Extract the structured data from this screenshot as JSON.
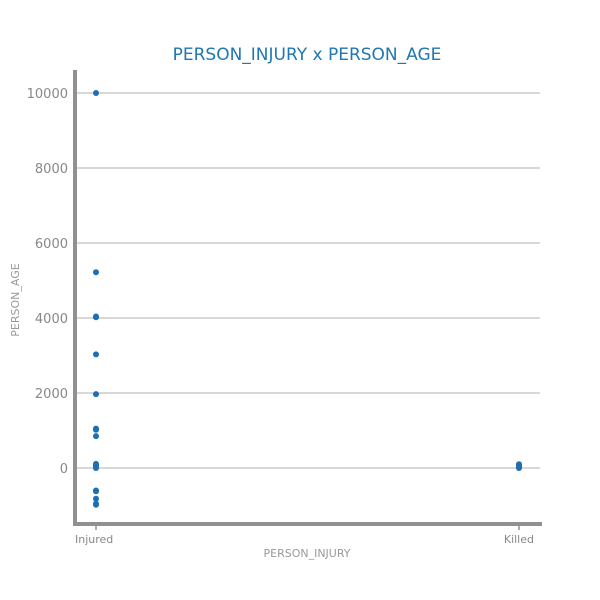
{
  "colors": {
    "accent": "#1f77b4",
    "point": "#1f6fb0",
    "axis": "#909090",
    "grid": "#cccccc",
    "text": "#888888"
  },
  "chart_data": {
    "type": "scatter",
    "title": "PERSON_INJURY x PERSON_AGE",
    "xlabel": "PERSON_INJURY",
    "ylabel": "PERSON_AGE",
    "categories": [
      "Injured",
      "Killed"
    ],
    "ylim": [
      -1500,
      10600
    ],
    "yticks": [
      0,
      2000,
      4000,
      6000,
      8000,
      10000
    ],
    "ytick_labels": [
      "0",
      "2000",
      "4000",
      "6000",
      "8000",
      "10000"
    ],
    "grid": true,
    "points": [
      {
        "x": "Injured",
        "y": 10000
      },
      {
        "x": "Injured",
        "y": 5220
      },
      {
        "x": "Injured",
        "y": 4040
      },
      {
        "x": "Injured",
        "y": 4020
      },
      {
        "x": "Injured",
        "y": 3030
      },
      {
        "x": "Injured",
        "y": 1970
      },
      {
        "x": "Injured",
        "y": 1050
      },
      {
        "x": "Injured",
        "y": 1020
      },
      {
        "x": "Injured",
        "y": 850
      },
      {
        "x": "Injured",
        "y": 110
      },
      {
        "x": "Injured",
        "y": 80
      },
      {
        "x": "Injured",
        "y": 50
      },
      {
        "x": "Injured",
        "y": 20
      },
      {
        "x": "Injured",
        "y": 0
      },
      {
        "x": "Injured",
        "y": -600
      },
      {
        "x": "Injured",
        "y": -620
      },
      {
        "x": "Injured",
        "y": -820
      },
      {
        "x": "Injured",
        "y": -950
      },
      {
        "x": "Injured",
        "y": -980
      },
      {
        "x": "Killed",
        "y": 100
      },
      {
        "x": "Killed",
        "y": 70
      },
      {
        "x": "Killed",
        "y": 40
      },
      {
        "x": "Killed",
        "y": 20
      },
      {
        "x": "Killed",
        "y": 0
      }
    ]
  }
}
